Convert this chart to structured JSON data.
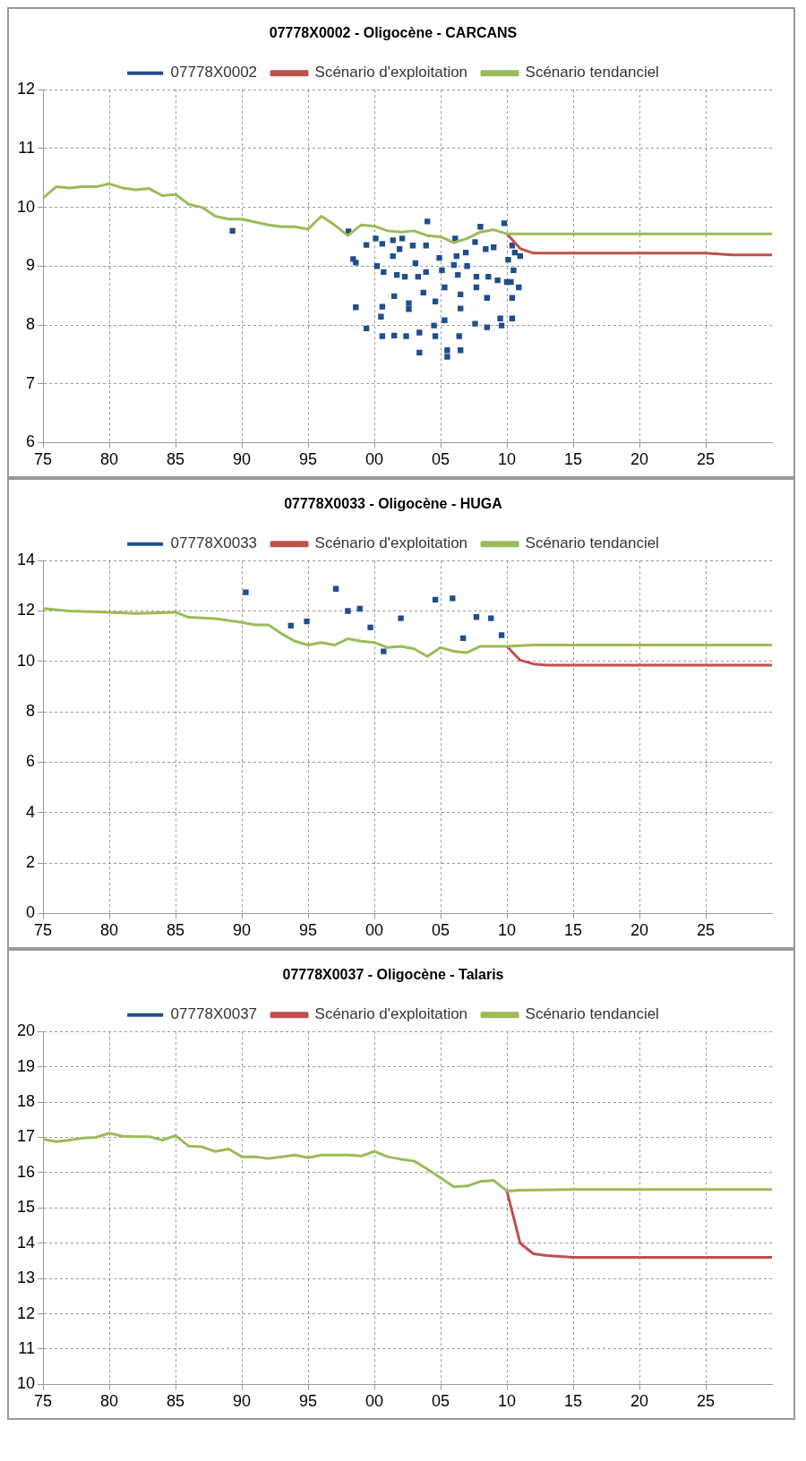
{
  "chart_data": [
    {
      "type": "line",
      "title": "07778X0002 - Oligocène - CARCANS",
      "legend": "top",
      "grid": true,
      "xlim": [
        1975,
        2030
      ],
      "xticks": [
        {
          "value": 1975,
          "label": "75"
        },
        {
          "value": 1980,
          "label": "80"
        },
        {
          "value": 1985,
          "label": "85"
        },
        {
          "value": 1990,
          "label": "90"
        },
        {
          "value": 1995,
          "label": "95"
        },
        {
          "value": 2000,
          "label": "00"
        },
        {
          "value": 2005,
          "label": "05"
        },
        {
          "value": 2010,
          "label": "10"
        },
        {
          "value": 2015,
          "label": "15"
        },
        {
          "value": 2020,
          "label": "20"
        },
        {
          "value": 2025,
          "label": "25"
        }
      ],
      "ylim": [
        6,
        12
      ],
      "yticks": [
        6,
        7,
        8,
        9,
        10,
        11,
        12
      ],
      "series": [
        {
          "name": "07778X0002",
          "type": "scatter",
          "marker": "square",
          "color": "#1f4e8c",
          "x": [
            1989.3,
            1998.05,
            1998.4,
            1998.6,
            1998.6,
            1999.4,
            1999.4,
            2000.1,
            2000.2,
            2000.5,
            2000.6,
            2000.6,
            2000.6,
            2000.7,
            2001.4,
            2001.4,
            2001.5,
            2001.5,
            2001.7,
            2001.9,
            2002.1,
            2002.3,
            2002.4,
            2002.6,
            2002.6,
            2002.9,
            2003.1,
            2003.3,
            2003.4,
            2003.4,
            2003.7,
            2003.9,
            2003.9,
            2004.0,
            2004.5,
            2004.6,
            2004.6,
            2004.9,
            2005.1,
            2005.3,
            2005.3,
            2005.5,
            2005.5,
            2006.0,
            2006.1,
            2006.2,
            2006.3,
            2006.4,
            2006.5,
            2006.5,
            2006.5,
            2006.9,
            2007.0,
            2007.6,
            2007.6,
            2007.7,
            2007.7,
            2008.0,
            2008.4,
            2008.5,
            2008.5,
            2008.6,
            2009.0,
            2009.3,
            2009.5,
            2009.6,
            2009.8,
            2010.0,
            2010.1,
            2010.3,
            2010.4,
            2010.4,
            2010.4,
            2010.5,
            2010.6,
            2010.9,
            2011.0
          ],
          "values": [
            9.6,
            9.59,
            9.12,
            9.06,
            8.3,
            9.36,
            7.94,
            9.47,
            9.0,
            8.14,
            9.38,
            8.31,
            7.81,
            8.9,
            9.44,
            9.17,
            8.49,
            7.82,
            8.85,
            9.29,
            9.47,
            8.82,
            7.81,
            8.37,
            8.27,
            9.35,
            9.05,
            8.82,
            7.87,
            7.53,
            8.55,
            9.35,
            8.9,
            9.76,
            7.99,
            8.4,
            7.81,
            9.14,
            8.93,
            8.64,
            8.08,
            7.57,
            7.46,
            9.02,
            9.47,
            9.17,
            8.85,
            7.81,
            8.52,
            8.28,
            7.57,
            9.23,
            9.0,
            9.41,
            8.02,
            8.82,
            8.64,
            9.67,
            9.29,
            8.46,
            7.96,
            8.82,
            9.32,
            8.76,
            8.11,
            7.99,
            9.73,
            8.73,
            9.11,
            8.73,
            9.35,
            8.46,
            8.11,
            8.93,
            9.23,
            8.64,
            9.17
          ]
        },
        {
          "name": "Scénario d'exploitation",
          "color": "#c0504d",
          "x": [
            2010,
            2011,
            2012,
            2015,
            2020,
            2025,
            2027,
            2030
          ],
          "values": [
            9.55,
            9.3,
            9.22,
            9.22,
            9.22,
            9.22,
            9.19,
            9.19
          ]
        },
        {
          "name": "Scénario tendanciel",
          "color": "#9bbb59",
          "x": [
            1975,
            1976,
            1977,
            1978,
            1979,
            1980,
            1981,
            1982,
            1983,
            1984,
            1985,
            1986,
            1987,
            1988,
            1989,
            1990,
            1991,
            1992,
            1993,
            1994,
            1995,
            1996,
            1997,
            1998,
            1999,
            2000,
            2001,
            2002,
            2003,
            2004,
            2005,
            2006,
            2007,
            2008,
            2009,
            2010,
            2011,
            2020,
            2030
          ],
          "values": [
            10.16,
            10.35,
            10.33,
            10.35,
            10.35,
            10.4,
            10.33,
            10.3,
            10.32,
            10.2,
            10.22,
            10.05,
            10.0,
            9.85,
            9.8,
            9.8,
            9.75,
            9.7,
            9.67,
            9.67,
            9.63,
            9.85,
            9.7,
            9.52,
            9.7,
            9.68,
            9.6,
            9.58,
            9.6,
            9.52,
            9.5,
            9.4,
            9.47,
            9.58,
            9.62,
            9.55,
            9.55,
            9.55,
            9.55
          ]
        }
      ]
    },
    {
      "type": "line",
      "title": "07778X0033 - Oligocène - HUGA",
      "legend": "top",
      "grid": true,
      "xlim": [
        1975,
        2030
      ],
      "xticks": [
        {
          "value": 1975,
          "label": "75"
        },
        {
          "value": 1980,
          "label": "80"
        },
        {
          "value": 1985,
          "label": "85"
        },
        {
          "value": 1990,
          "label": "90"
        },
        {
          "value": 1995,
          "label": "95"
        },
        {
          "value": 2000,
          "label": "00"
        },
        {
          "value": 2005,
          "label": "05"
        },
        {
          "value": 2010,
          "label": "10"
        },
        {
          "value": 2015,
          "label": "15"
        },
        {
          "value": 2020,
          "label": "20"
        },
        {
          "value": 2025,
          "label": "25"
        }
      ],
      "ylim": [
        0,
        14
      ],
      "yticks": [
        0,
        2,
        4,
        6,
        8,
        10,
        12,
        14
      ],
      "series": [
        {
          "name": "07778X0033",
          "type": "scatter",
          "marker": "square",
          "color": "#1f4e8c",
          "x": [
            1990.3,
            1993.7,
            1994.9,
            1997.1,
            1998.0,
            1998.9,
            1999.7,
            2000.7,
            2002.0,
            2004.6,
            2005.9,
            2006.7,
            2007.7,
            2008.8,
            2009.6
          ],
          "values": [
            12.74,
            11.42,
            11.59,
            12.88,
            12.0,
            12.09,
            11.35,
            10.4,
            11.71,
            12.45,
            12.5,
            10.92,
            11.76,
            11.71,
            11.04
          ]
        },
        {
          "name": "Scénario d'exploitation",
          "color": "#c0504d",
          "x": [
            2010,
            2011,
            2012,
            2013,
            2020,
            2030
          ],
          "values": [
            10.6,
            10.05,
            9.9,
            9.85,
            9.85,
            9.85
          ]
        },
        {
          "name": "Scénario tendanciel",
          "color": "#9bbb59",
          "x": [
            1975,
            1977,
            1980,
            1982,
            1985,
            1986,
            1988,
            1990,
            1991,
            1992,
            1993,
            1994,
            1995,
            1996,
            1997,
            1998,
            1999,
            2000,
            2001,
            2002,
            2003,
            2004,
            2005,
            2006,
            2007,
            2008,
            2009,
            2010,
            2012,
            2030
          ],
          "values": [
            12.1,
            12.0,
            11.95,
            11.9,
            11.95,
            11.75,
            11.7,
            11.55,
            11.45,
            11.45,
            11.1,
            10.8,
            10.65,
            10.75,
            10.65,
            10.9,
            10.8,
            10.75,
            10.55,
            10.6,
            10.5,
            10.2,
            10.55,
            10.4,
            10.35,
            10.6,
            10.6,
            10.6,
            10.65,
            10.65
          ]
        }
      ]
    },
    {
      "type": "line",
      "title": "07778X0037 - Oligocène - Talaris",
      "legend": "top",
      "grid": true,
      "xlim": [
        1975,
        2030
      ],
      "xticks": [
        {
          "value": 1975,
          "label": "75"
        },
        {
          "value": 1980,
          "label": "80"
        },
        {
          "value": 1985,
          "label": "85"
        },
        {
          "value": 1990,
          "label": "90"
        },
        {
          "value": 1995,
          "label": "95"
        },
        {
          "value": 2000,
          "label": "00"
        },
        {
          "value": 2005,
          "label": "05"
        },
        {
          "value": 2010,
          "label": "10"
        },
        {
          "value": 2015,
          "label": "15"
        },
        {
          "value": 2020,
          "label": "20"
        },
        {
          "value": 2025,
          "label": "25"
        }
      ],
      "ylim": [
        10,
        20
      ],
      "yticks": [
        10,
        11,
        12,
        13,
        14,
        15,
        16,
        17,
        18,
        19,
        20
      ],
      "series": [
        {
          "name": "07778X0037",
          "type": "scatter",
          "marker": "square",
          "color": "#1f4e8c"
        },
        {
          "name": "Scénario d'exploitation",
          "color": "#c0504d",
          "x": [
            2010,
            2011,
            2012,
            2013,
            2015,
            2020,
            2030
          ],
          "values": [
            15.48,
            14.0,
            13.7,
            13.65,
            13.6,
            13.6,
            13.6
          ]
        },
        {
          "name": "Scénario tendanciel",
          "color": "#9bbb59",
          "x": [
            1975,
            1976,
            1977,
            1978,
            1979,
            1980,
            1981,
            1982,
            1983,
            1984,
            1985,
            1986,
            1987,
            1988,
            1989,
            1990,
            1991,
            1992,
            1993,
            1994,
            1995,
            1996,
            1997,
            1998,
            1999,
            2000,
            2001,
            2002,
            2003,
            2004,
            2005,
            2006,
            2007,
            2008,
            2009,
            2010,
            2011,
            2015,
            2030
          ],
          "values": [
            16.95,
            16.88,
            16.92,
            16.98,
            17.0,
            17.12,
            17.03,
            17.02,
            17.02,
            16.92,
            17.05,
            16.75,
            16.73,
            16.6,
            16.67,
            16.45,
            16.45,
            16.4,
            16.45,
            16.5,
            16.42,
            16.5,
            16.5,
            16.5,
            16.47,
            16.6,
            16.45,
            16.38,
            16.33,
            16.1,
            15.85,
            15.6,
            15.62,
            15.75,
            15.78,
            15.48,
            15.5,
            15.52,
            15.52
          ]
        }
      ]
    }
  ]
}
